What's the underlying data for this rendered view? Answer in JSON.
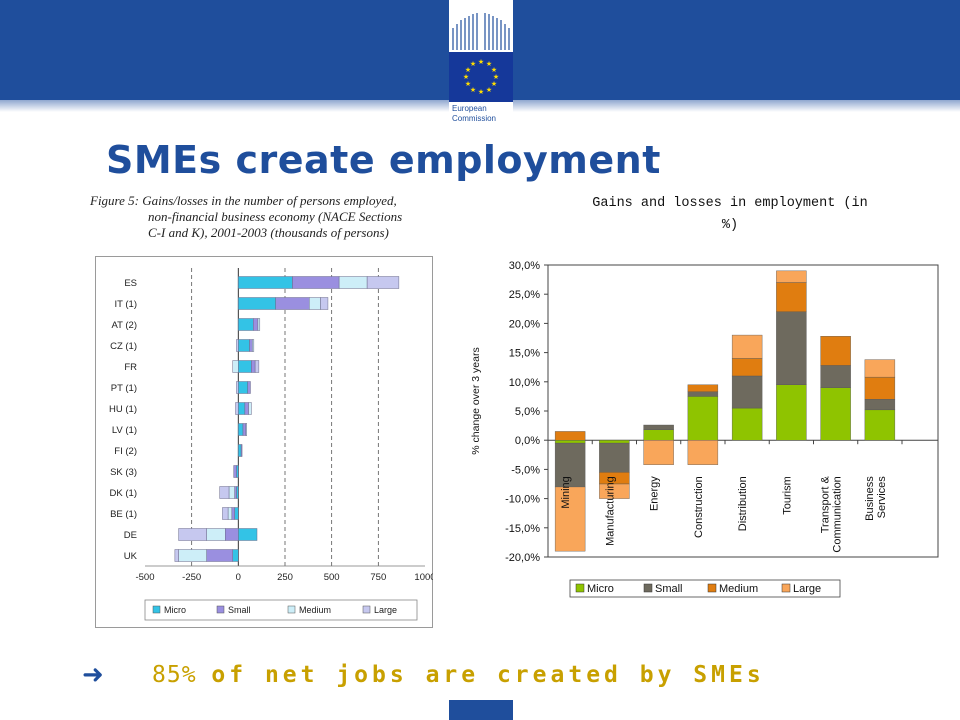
{
  "header": {
    "logo_line1": "European",
    "logo_line2": "Commission",
    "title": "SMEs create employment"
  },
  "figure_caption": {
    "line1": "Figure 5: Gains/losses in the number of persons employed,",
    "line2": "non-financial business economy (NACE Sections",
    "line3": "C-I and K), 2001-2003 (thousands of persons)"
  },
  "right_title": {
    "line1": "Gains and losses  in employment (in",
    "line2": "%)"
  },
  "bottom": {
    "arrow": "",
    "pct": "85%",
    "rest": "of net jobs are created by SMEs"
  },
  "colors": {
    "brand_blue": "#1f4e9c",
    "micro_left": "#33c3e6",
    "small_left": "#9a8fe0",
    "medium_left": "#cdeef8",
    "large_left": "#c6c8ef",
    "micro_right": "#8fc400",
    "small_right": "#6e6a5e",
    "medium_right": "#e07d10",
    "large_right": "#f9a65a"
  },
  "chart_data": [
    {
      "type": "bar",
      "orientation": "horizontal",
      "stacked": true,
      "categories": [
        "ES",
        "IT (1)",
        "AT (2)",
        "CZ (1)",
        "FR",
        "PT (1)",
        "HU (1)",
        "LV (1)",
        "FI (2)",
        "SK (3)",
        "DK (1)",
        "BE (1)",
        "DE",
        "UK"
      ],
      "series": [
        {
          "name": "Micro",
          "values": [
            290,
            200,
            80,
            60,
            70,
            50,
            35,
            25,
            15,
            -10,
            -10,
            -20,
            100,
            -30
          ]
        },
        {
          "name": "Small",
          "values": [
            250,
            180,
            25,
            15,
            20,
            15,
            20,
            15,
            5,
            -15,
            -10,
            -15,
            -70,
            -140
          ]
        },
        {
          "name": "Medium",
          "values": [
            150,
            60,
            10,
            8,
            -30,
            0,
            15,
            5,
            0,
            0,
            -30,
            -20,
            -100,
            -150
          ]
        },
        {
          "name": "Large",
          "values": [
            170,
            40,
            0,
            -10,
            20,
            -10,
            -15,
            0,
            0,
            0,
            -50,
            -30,
            -150,
            -20
          ]
        }
      ],
      "xticks": [
        "-500",
        "-250",
        "0",
        "250",
        "500",
        "750",
        "1000"
      ],
      "xlim": [
        -500,
        1000
      ],
      "grid": "dashed vertical",
      "legend": "bottom"
    },
    {
      "type": "bar",
      "stacked": true,
      "categories": [
        "Mining",
        "Manufacturing",
        "Energy",
        "Construction",
        "Distribution",
        "Tourism",
        "Transport & Communication",
        "Business Services"
      ],
      "series": [
        {
          "name": "Micro",
          "values": [
            -0.5,
            -0.5,
            1.8,
            7.5,
            5.5,
            9.5,
            9.0,
            5.2
          ]
        },
        {
          "name": "Small",
          "values": [
            -7.5,
            -5.0,
            0.8,
            0.8,
            5.5,
            12.5,
            3.8,
            1.8
          ]
        },
        {
          "name": "Medium",
          "values": [
            1.5,
            -2.0,
            0.0,
            1.2,
            3.0,
            5.0,
            5.0,
            3.8
          ]
        },
        {
          "name": "Large",
          "values": [
            -11.0,
            -2.5,
            -4.2,
            -4.2,
            4.0,
            2.0,
            0.0,
            3.0
          ]
        }
      ],
      "ylabel": "% change over 3 years",
      "yticks": [
        "30,0%",
        "25,0%",
        "20,0%",
        "15,0%",
        "10,0%",
        "5,0%",
        "0,0%",
        "-5,0%",
        "-10,0%",
        "-15,0%",
        "-20,0%"
      ],
      "ylim": [
        -20,
        30
      ],
      "grid": false,
      "legend": "bottom"
    }
  ]
}
